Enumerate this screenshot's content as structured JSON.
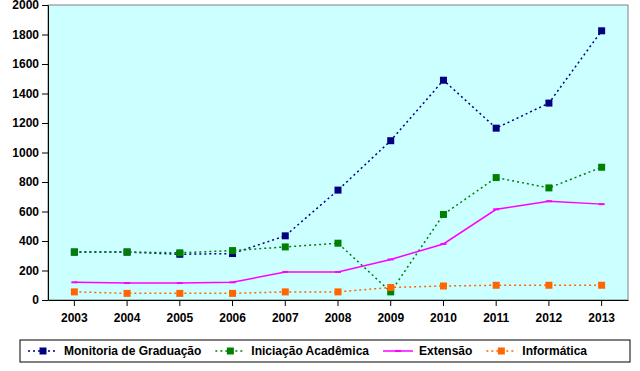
{
  "chart_data": {
    "type": "line",
    "categories": [
      "2003",
      "2004",
      "2005",
      "2006",
      "2007",
      "2008",
      "2009",
      "2010",
      "2011",
      "2012",
      "2013"
    ],
    "series": [
      {
        "name": "Monitoria de Graduação",
        "color": "#000080",
        "marker": "square",
        "line_style": "dotted",
        "values": [
          325,
          325,
          310,
          315,
          435,
          745,
          1080,
          1490,
          1165,
          1335,
          1825
        ]
      },
      {
        "name": "Iniciação Acadêmica",
        "color": "#008000",
        "marker": "square",
        "line_style": "dotted",
        "values": [
          325,
          325,
          320,
          335,
          360,
          385,
          55,
          580,
          830,
          760,
          900
        ]
      },
      {
        "name": "Extensão",
        "color": "#ff00ff",
        "marker": "dash",
        "line_style": "solid",
        "values": [
          120,
          115,
          115,
          120,
          190,
          190,
          275,
          380,
          615,
          670,
          650
        ]
      },
      {
        "name": "Informática",
        "color": "#ff6600",
        "marker": "square",
        "line_style": "dotted",
        "values": [
          55,
          45,
          45,
          45,
          55,
          55,
          85,
          95,
          100,
          100,
          100
        ]
      }
    ],
    "ylim": [
      0,
      2000
    ],
    "yticks": [
      0,
      200,
      400,
      600,
      800,
      1000,
      1200,
      1400,
      1600,
      1800,
      2000
    ],
    "grid": false,
    "legend": "bottom"
  }
}
